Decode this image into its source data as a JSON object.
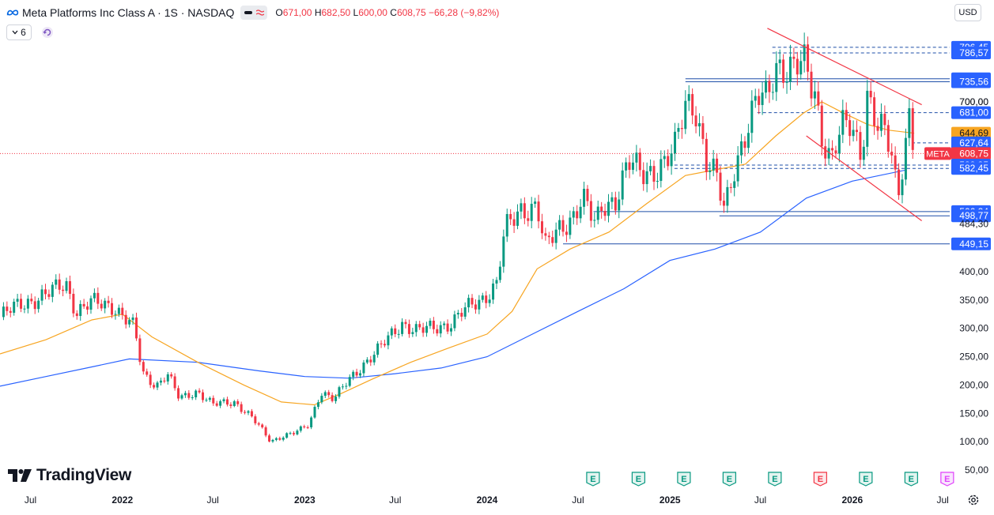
{
  "header": {
    "symbol": "Meta Platforms Inc Class A · 1S · NASDAQ",
    "open_label": "O",
    "open": "671,00",
    "high_label": "H",
    "high": "682,50",
    "low_label": "L",
    "low": "600,00",
    "close_label": "C",
    "close": "608,75",
    "change": "−66,28 (−9,82%)",
    "indicator_count": "6",
    "currency": "USD"
  },
  "branding": {
    "logo_text": "TradingView"
  },
  "icons": [
    "meta-logo-icon",
    "chevron-down-icon",
    "refresh-icon",
    "wave-icon",
    "earnings-icon",
    "gear-icon"
  ],
  "colors": {
    "up": "#089981",
    "down": "#f23645",
    "ma_fast": "#f7a521",
    "ma_slow": "#2962ff",
    "channel": "#f23645",
    "level": "#1e4fa8",
    "price_label": "#2962ff",
    "current": "#f23645",
    "ma_label": "#f7a521"
  },
  "chart_data": {
    "type": "candlestick",
    "x_axis": {
      "ticks": [
        "Jul",
        "2022",
        "Jul",
        "2023",
        "Jul",
        "2024",
        "Jul",
        "2025",
        "Jul",
        "2026",
        "Jul"
      ],
      "range": [
        "2021-05-01",
        "2026-07-15"
      ]
    },
    "y_axis": {
      "ticks": [
        "50,00",
        "100,00",
        "150,00",
        "200,00",
        "250,00",
        "300,00",
        "350,00",
        "400,00",
        "700,00"
      ],
      "range": [
        30,
        850
      ],
      "side": "right"
    },
    "series": [
      {
        "kind": "ohlc",
        "points": [
          [
            "2021-05-01",
            320
          ],
          [
            "2021-06-15",
            345
          ],
          [
            "2021-08-01",
            358
          ],
          [
            "2021-09-10",
            380
          ],
          [
            "2021-10-01",
            330
          ],
          [
            "2021-11-01",
            345
          ],
          [
            "2021-12-15",
            340
          ],
          [
            "2022-01-25",
            300
          ],
          [
            "2022-02-10",
            220
          ],
          [
            "2022-03-10",
            200
          ],
          [
            "2022-04-01",
            220
          ],
          [
            "2022-04-25",
            175
          ],
          [
            "2022-06-01",
            190
          ],
          [
            "2022-07-01",
            165
          ],
          [
            "2022-08-15",
            170
          ],
          [
            "2022-09-15",
            145
          ],
          [
            "2022-10-25",
            100
          ],
          [
            "2022-11-15",
            110
          ],
          [
            "2022-12-20",
            118
          ],
          [
            "2023-01-10",
            130
          ],
          [
            "2023-02-02",
            190
          ],
          [
            "2023-03-01",
            175
          ],
          [
            "2023-04-01",
            210
          ],
          [
            "2023-05-01",
            240
          ],
          [
            "2023-06-01",
            265
          ],
          [
            "2023-07-15",
            310
          ],
          [
            "2023-08-15",
            295
          ],
          [
            "2023-09-15",
            300
          ],
          [
            "2023-10-20",
            310
          ],
          [
            "2023-11-15",
            330
          ],
          [
            "2023-12-20",
            350
          ],
          [
            "2024-01-20",
            380
          ],
          [
            "2024-02-05",
            470
          ],
          [
            "2024-03-10",
            510
          ],
          [
            "2024-04-10",
            520
          ],
          [
            "2024-04-26",
            440
          ],
          [
            "2024-05-20",
            470
          ],
          [
            "2024-06-20",
            500
          ],
          [
            "2024-07-10",
            530
          ],
          [
            "2024-08-05",
            480
          ],
          [
            "2024-08-20",
            520
          ],
          [
            "2024-09-15",
            530
          ],
          [
            "2024-10-10",
            590
          ],
          [
            "2024-11-05",
            575
          ],
          [
            "2024-11-25",
            580
          ],
          [
            "2024-12-20",
            590
          ],
          [
            "2025-01-10",
            610
          ],
          [
            "2025-02-01",
            700
          ],
          [
            "2025-02-20",
            700
          ],
          [
            "2025-03-15",
            590
          ],
          [
            "2025-04-05",
            560
          ],
          [
            "2025-04-20",
            510
          ],
          [
            "2025-05-10",
            590
          ],
          [
            "2025-06-01",
            640
          ],
          [
            "2025-06-30",
            710
          ],
          [
            "2025-07-15",
            710
          ],
          [
            "2025-07-31",
            775
          ],
          [
            "2025-08-15",
            760
          ],
          [
            "2025-09-05",
            750
          ],
          [
            "2025-09-25",
            770
          ],
          [
            "2025-10-20",
            720
          ],
          [
            "2025-10-30",
            650
          ],
          [
            "2025-11-20",
            590
          ],
          [
            "2025-12-10",
            650
          ],
          [
            "2025-12-30",
            665
          ],
          [
            "2026-01-20",
            610
          ],
          [
            "2026-01-30",
            715
          ],
          [
            "2026-02-20",
            650
          ],
          [
            "2026-03-10",
            640
          ],
          [
            "2026-03-25",
            595
          ],
          [
            "2026-04-01",
            530
          ],
          [
            "2026-04-15",
            620
          ],
          [
            "2026-04-25",
            675
          ],
          [
            "2026-05-05",
            608.75
          ]
        ]
      },
      {
        "kind": "moving_average_fast",
        "points": [
          [
            "2021-05-01",
            255
          ],
          [
            "2021-08-01",
            280
          ],
          [
            "2021-11-01",
            315
          ],
          [
            "2022-01-01",
            325
          ],
          [
            "2022-03-01",
            285
          ],
          [
            "2022-06-01",
            240
          ],
          [
            "2022-09-01",
            200
          ],
          [
            "2022-11-15",
            170
          ],
          [
            "2023-01-20",
            165
          ],
          [
            "2023-03-15",
            185
          ],
          [
            "2023-05-15",
            210
          ],
          [
            "2023-08-01",
            240
          ],
          [
            "2023-10-15",
            265
          ],
          [
            "2024-01-01",
            290
          ],
          [
            "2024-02-20",
            330
          ],
          [
            "2024-04-10",
            405
          ],
          [
            "2024-06-15",
            440
          ],
          [
            "2024-09-01",
            470
          ],
          [
            "2024-11-15",
            520
          ],
          [
            "2025-02-01",
            570
          ],
          [
            "2025-04-01",
            580
          ],
          [
            "2025-06-01",
            590
          ],
          [
            "2025-08-01",
            640
          ],
          [
            "2025-09-25",
            680
          ],
          [
            "2025-11-01",
            700
          ],
          [
            "2025-12-15",
            680
          ],
          [
            "2026-02-01",
            660
          ],
          [
            "2026-03-15",
            650
          ],
          [
            "2026-05-05",
            644.69
          ]
        ]
      },
      {
        "kind": "moving_average_slow",
        "points": [
          [
            "2021-05-01",
            198
          ],
          [
            "2021-08-01",
            215
          ],
          [
            "2021-11-01",
            232
          ],
          [
            "2022-01-15",
            246
          ],
          [
            "2022-06-01",
            240
          ],
          [
            "2022-10-01",
            225
          ],
          [
            "2023-01-01",
            215
          ],
          [
            "2023-04-01",
            212
          ],
          [
            "2023-07-01",
            220
          ],
          [
            "2023-10-01",
            230
          ],
          [
            "2024-01-01",
            250
          ],
          [
            "2024-04-01",
            290
          ],
          [
            "2024-07-01",
            330
          ],
          [
            "2024-10-01",
            370
          ],
          [
            "2025-01-01",
            420
          ],
          [
            "2025-04-01",
            440
          ],
          [
            "2025-07-01",
            470
          ],
          [
            "2025-10-01",
            530
          ],
          [
            "2026-01-01",
            560
          ],
          [
            "2026-04-20",
            580
          ]
        ]
      }
    ],
    "trendlines": [
      {
        "from": [
          "2025-07-15",
          830
        ],
        "to": [
          "2026-05-20",
          695
        ]
      },
      {
        "from": [
          "2025-10-01",
          640
        ],
        "to": [
          "2026-05-20",
          490
        ]
      }
    ],
    "price_labels": [
      {
        "value": 796.45,
        "label": "796,45",
        "line": "dashed",
        "from": "2025-07-25"
      },
      {
        "value": 786.57,
        "label": "786,57",
        "line": "dashed",
        "from": "2025-07-25"
      },
      {
        "value": 740.77,
        "label": "740,77",
        "line": "solid",
        "from": "2025-02-01"
      },
      {
        "value": 735.56,
        "label": "735,56",
        "line": "solid",
        "from": "2025-02-01"
      },
      {
        "value": 700.0,
        "label": "700,00",
        "line": "none"
      },
      {
        "value": 681.0,
        "label": "681,00",
        "line": "dashed",
        "from": "2025-06-25"
      },
      {
        "value": 644.69,
        "label": "644,69",
        "line": "none",
        "kind": "ma"
      },
      {
        "value": 627.64,
        "label": "627,64",
        "line": "dashed",
        "from": "2026-04-30"
      },
      {
        "value": 608.75,
        "label": "608,75",
        "line": "dotted",
        "kind": "current",
        "tag": "META"
      },
      {
        "value": 588.35,
        "label": "588,35",
        "line": "dashed",
        "from": "2025-01-10"
      },
      {
        "value": 582.45,
        "label": "582,45",
        "line": "dashed",
        "from": "2025-01-10"
      },
      {
        "value": 506.24,
        "label": "506,24",
        "line": "solid",
        "from": "2024-08-01"
      },
      {
        "value": 498.77,
        "label": "498,77",
        "line": "solid",
        "from": "2025-04-10"
      },
      {
        "value": 484.3,
        "label": "484,30",
        "line": "none"
      },
      {
        "value": 449.15,
        "label": "449,15",
        "line": "solid",
        "from": "2024-06-01"
      }
    ],
    "events": [
      {
        "date": "2024-07-31",
        "type": "earnings",
        "symbol": "E",
        "tone": "up"
      },
      {
        "date": "2024-10-30",
        "type": "earnings",
        "symbol": "E",
        "tone": "up"
      },
      {
        "date": "2025-01-29",
        "type": "earnings",
        "symbol": "E",
        "tone": "up"
      },
      {
        "date": "2025-04-30",
        "type": "earnings",
        "symbol": "E",
        "tone": "up"
      },
      {
        "date": "2025-07-30",
        "type": "earnings",
        "symbol": "E",
        "tone": "up"
      },
      {
        "date": "2025-10-29",
        "type": "earnings",
        "symbol": "E",
        "tone": "down"
      },
      {
        "date": "2026-01-28",
        "type": "earnings",
        "symbol": "E",
        "tone": "up"
      },
      {
        "date": "2026-04-29",
        "type": "earnings",
        "symbol": "E",
        "tone": "up"
      },
      {
        "date": "2026-07-10",
        "type": "earnings",
        "symbol": "E",
        "tone": "future"
      }
    ],
    "grid": false,
    "legend": "top-left"
  }
}
